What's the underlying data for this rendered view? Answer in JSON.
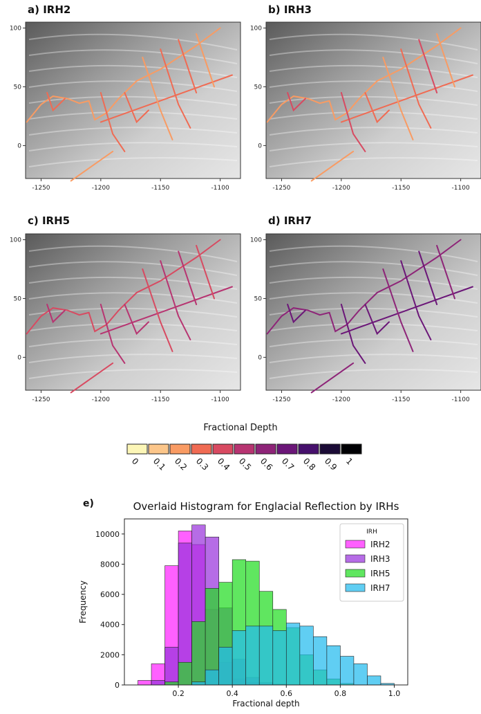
{
  "maps": [
    {
      "label": "a) IRH2",
      "dominant_fraction": 0.25
    },
    {
      "label": "b) IRH3",
      "dominant_fraction": 0.3
    },
    {
      "label": "c) IRH5",
      "dominant_fraction": 0.45
    },
    {
      "label": "d) IRH7",
      "dominant_fraction": 0.65
    }
  ],
  "map_axes": {
    "xticks": [
      "-1250",
      "-1200",
      "-1150",
      "-1100"
    ],
    "xtick_values": [
      -1250,
      -1200,
      -1150,
      -1100
    ],
    "yticks": [
      "100",
      "50",
      "0"
    ],
    "ytick_values": [
      100,
      50,
      0
    ],
    "xlim": [
      -1263,
      -1083
    ],
    "ylim": [
      -28,
      105
    ]
  },
  "colorbar": {
    "title": "Fractional Depth",
    "ticks": [
      "0",
      "0.1",
      "0.2",
      "0.3",
      "0.4",
      "0.5",
      "0.6",
      "0.7",
      "0.8",
      "0.9",
      "1"
    ],
    "colors": [
      "#fcf6b7",
      "#fcc68a",
      "#f99b63",
      "#f06b53",
      "#d84a61",
      "#b73471",
      "#8e2478",
      "#6b1678",
      "#46106c",
      "#1b0b36",
      "#000004"
    ]
  },
  "histogram": {
    "panel_label": "e)",
    "title": "Overlaid Histogram for Englacial Reflection by IRHs",
    "legend_title": "IRH",
    "legend_position": "top-right"
  },
  "chart_data": {
    "type": "bar",
    "title": "Overlaid Histogram for Englacial Reflection by IRHs",
    "xlabel": "Fractional depth",
    "ylabel": "Frequency",
    "xlim": [
      0,
      1.05
    ],
    "ylim": [
      0,
      11000
    ],
    "xticks": [
      "0.2",
      "0.4",
      "0.6",
      "0.8",
      "1.0"
    ],
    "yticks": [
      "0",
      "2000",
      "4000",
      "6000",
      "8000",
      "10000"
    ],
    "legend_title": "IRH",
    "series": [
      {
        "name": "IRH2",
        "color": "#ff22ff",
        "bin_width": 0.05,
        "bins": [
          0.075,
          0.125,
          0.175,
          0.225,
          0.275,
          0.325,
          0.375,
          0.425,
          0.475,
          0.525
        ],
        "values": [
          300,
          1400,
          7900,
          10200,
          9300,
          5000,
          1500,
          400,
          150,
          50
        ]
      },
      {
        "name": "IRH3",
        "color": "#9a33dd",
        "bin_width": 0.05,
        "bins": [
          0.125,
          0.175,
          0.225,
          0.275,
          0.325,
          0.375,
          0.425,
          0.475,
          0.525,
          0.575
        ],
        "values": [
          300,
          2500,
          9400,
          10600,
          9800,
          5100,
          1700,
          500,
          150,
          50
        ]
      },
      {
        "name": "IRH5",
        "color": "#22dd22",
        "bin_width": 0.05,
        "bins": [
          0.175,
          0.225,
          0.275,
          0.325,
          0.375,
          0.425,
          0.475,
          0.525,
          0.575,
          0.625,
          0.675,
          0.725,
          0.775,
          0.825
        ],
        "values": [
          200,
          1500,
          4200,
          6400,
          6800,
          8300,
          8200,
          6200,
          5000,
          3800,
          2000,
          1000,
          400,
          100
        ]
      },
      {
        "name": "IRH7",
        "color": "#22bbee",
        "bin_width": 0.05,
        "bins": [
          0.275,
          0.325,
          0.375,
          0.425,
          0.475,
          0.525,
          0.575,
          0.625,
          0.675,
          0.725,
          0.775,
          0.825,
          0.875,
          0.925,
          0.975
        ],
        "values": [
          200,
          1000,
          2500,
          3600,
          3900,
          3900,
          3600,
          4100,
          3900,
          3200,
          2600,
          1900,
          1400,
          600,
          100
        ]
      }
    ]
  }
}
